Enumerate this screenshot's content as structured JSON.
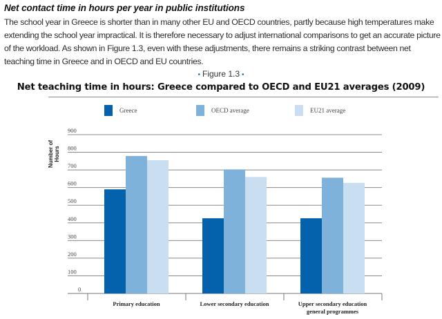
{
  "section": {
    "heading": "Net contact time in hours per year in public institutions",
    "body": "The school year in Greece is shorter than in many other EU and OECD countries, partly because high temperatures make extending the school year impractical. It is therefore necessary to adjust international comparisons to get an accurate picture of the workload. As shown in Figure 1.3, even with these adjustments, there remains a striking contrast between net teaching time in Greece and in OECD and EU countries."
  },
  "figure": {
    "label": "Figure 1.3",
    "bullet": "•"
  },
  "chart_data": {
    "type": "bar",
    "title": "Net teaching time in hours: Greece compared to OECD and EU21 averages (2009)",
    "xlabel": "",
    "ylabel": "Number of Hours",
    "ylim": [
      0,
      900
    ],
    "yticks": [
      0,
      100,
      200,
      300,
      400,
      500,
      600,
      700,
      800,
      900
    ],
    "grid": true,
    "legend_position": "top",
    "categories": [
      "Primary education",
      "Lower secondary education",
      "Upper secondary education general programmes"
    ],
    "category_lines": [
      [
        "Primary education"
      ],
      [
        "Lower secondary education"
      ],
      [
        "Upper secondary education",
        "general programmes"
      ]
    ],
    "series": [
      {
        "name": "Greece",
        "color": "#0461ac",
        "values": [
          590,
          426,
          426
        ]
      },
      {
        "name": "OECD average",
        "color": "#7fb2da",
        "values": [
          779,
          703,
          656
        ]
      },
      {
        "name": "EU21 average",
        "color": "#c9def0",
        "values": [
          755,
          660,
          627
        ]
      }
    ]
  }
}
